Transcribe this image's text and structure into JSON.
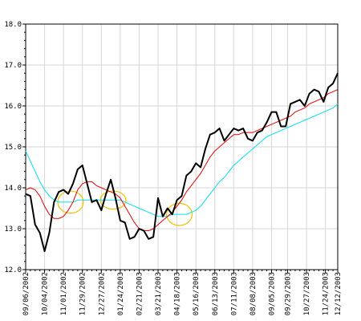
{
  "chart_data": {
    "type": "line",
    "title": "",
    "xlabel": "",
    "ylabel": "",
    "ylim": [
      12.0,
      18.0
    ],
    "y_ticks": [
      12.0,
      13.0,
      14.0,
      15.0,
      16.0,
      17.0,
      18.0
    ],
    "y_tick_labels": [
      "12.0",
      "13.0",
      "14.0",
      "15.0",
      "16.0",
      "17.0",
      "18.0"
    ],
    "x_tick_labels": [
      "09/06/2002",
      "10/04/2002",
      "11/01/2002",
      "11/29/2002",
      "12/27/2002",
      "01/24/2003",
      "02/21/2003",
      "03/21/2003",
      "04/18/2003",
      "05/16/2003",
      "06/13/2003",
      "07/11/2003",
      "08/08/2003",
      "09/05/2003",
      "09/29/2003",
      "10/27/2003",
      "11/24/2003",
      "12/12/2003"
    ],
    "x_tick_positions": [
      0,
      4,
      8,
      12,
      16,
      20,
      24,
      28,
      32,
      36,
      40,
      44,
      48,
      52,
      55.4,
      59.4,
      63.4,
      66
    ],
    "x_max": 66,
    "grid": true,
    "legend": "none",
    "series": [
      {
        "color": "#000000",
        "values": [
          13.85,
          13.8,
          13.1,
          12.9,
          12.45,
          12.9,
          13.65,
          13.9,
          13.95,
          13.85,
          14.1,
          14.45,
          14.55,
          14.1,
          13.65,
          13.7,
          13.45,
          13.85,
          14.2,
          13.75,
          13.2,
          13.15,
          12.75,
          12.8,
          13.0,
          12.95,
          12.75,
          12.8,
          13.75,
          13.3,
          13.5,
          13.35,
          13.7,
          13.8,
          14.3,
          14.4,
          14.6,
          14.5,
          14.95,
          15.3,
          15.35,
          15.45,
          15.15,
          15.3,
          15.45,
          15.4,
          15.45,
          15.2,
          15.15,
          15.35,
          15.4,
          15.6,
          15.85,
          15.85,
          15.5,
          15.5,
          16.05,
          16.1,
          16.15,
          16.0,
          16.3,
          16.4,
          16.35,
          16.1,
          16.45,
          16.55,
          16.8
        ]
      },
      {
        "color": "#e60000",
        "values": [
          13.95,
          14.0,
          13.95,
          13.8,
          13.55,
          13.35,
          13.25,
          13.25,
          13.3,
          13.45,
          13.65,
          13.95,
          14.1,
          14.15,
          14.15,
          14.05,
          14.0,
          13.95,
          13.9,
          13.85,
          13.75,
          13.55,
          13.35,
          13.15,
          13.0,
          12.95,
          12.95,
          13.0,
          13.1,
          13.2,
          13.3,
          13.4,
          13.55,
          13.7,
          13.9,
          14.05,
          14.2,
          14.35,
          14.55,
          14.75,
          14.9,
          15.0,
          15.1,
          15.2,
          15.3,
          15.3,
          15.35,
          15.35,
          15.35,
          15.4,
          15.45,
          15.5,
          15.55,
          15.6,
          15.65,
          15.7,
          15.75,
          15.85,
          15.9,
          15.95,
          16.05,
          16.1,
          16.15,
          16.2,
          16.3,
          16.35,
          16.4
        ]
      },
      {
        "color": "#00e0f0",
        "values": [
          14.9,
          14.65,
          14.4,
          14.15,
          13.95,
          13.8,
          13.7,
          13.65,
          13.65,
          13.65,
          13.65,
          13.7,
          13.7,
          13.7,
          13.7,
          13.7,
          13.7,
          13.7,
          13.7,
          13.7,
          13.7,
          13.65,
          13.6,
          13.55,
          13.5,
          13.45,
          13.4,
          13.35,
          13.3,
          13.3,
          13.3,
          13.35,
          13.35,
          13.35,
          13.35,
          13.4,
          13.45,
          13.55,
          13.7,
          13.85,
          14.0,
          14.15,
          14.25,
          14.4,
          14.55,
          14.65,
          14.75,
          14.85,
          14.95,
          15.05,
          15.15,
          15.25,
          15.3,
          15.35,
          15.4,
          15.45,
          15.5,
          15.55,
          15.6,
          15.65,
          15.7,
          15.75,
          15.8,
          15.85,
          15.9,
          15.95,
          16.05
        ]
      }
    ],
    "annotations": [
      {
        "shape": "ellipse",
        "color": "#f0c000",
        "x": 9.5,
        "y": 13.65,
        "rx": 2.7,
        "ry": 0.27
      },
      {
        "shape": "ellipse",
        "color": "#f0c000",
        "x": 18.5,
        "y": 13.7,
        "rx": 2.7,
        "ry": 0.22
      },
      {
        "shape": "ellipse",
        "color": "#f0c000",
        "x": 32.5,
        "y": 13.35,
        "rx": 2.7,
        "ry": 0.27
      }
    ]
  }
}
